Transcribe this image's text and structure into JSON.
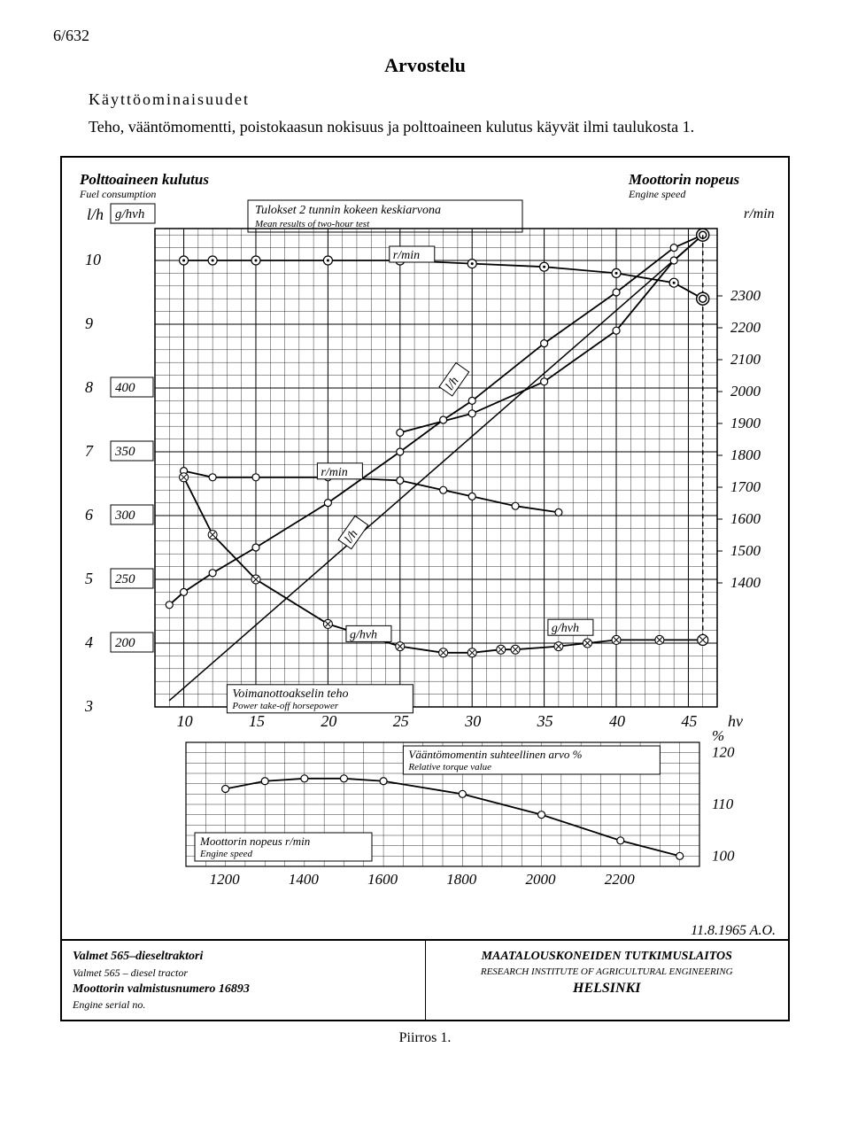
{
  "page_number": "6/632",
  "title": "Arvostelu",
  "subtitle": "Käyttöominaisuudet",
  "intro_text": "Teho, vääntömomentti, poistokaasun nokisuus ja polttoaineen kulutus käyvät ilmi taulukosta 1.",
  "caption": "Piirros 1.",
  "date": "11.8.1965 A.O.",
  "footer": {
    "left_line1": "Valmet 565–dieseltraktori",
    "left_line2": "Valmet 565 – diesel tractor",
    "left_line3": "Moottorin valmistusnumero   16893",
    "left_line4": "Engine serial no.",
    "right_line1": "MAATALOUSKONEIDEN TUTKIMUSLAITOS",
    "right_line2": "RESEARCH INSTITUTE OF AGRICULTURAL ENGINEERING",
    "right_line3": "HELSINKI"
  },
  "labels": {
    "fuel_consumption_fi": "Polttoaineen kulutus",
    "fuel_consumption_en": "Fuel consumption",
    "engine_speed_fi": "Moottorin nopeus",
    "engine_speed_en": "Engine speed",
    "lh": "l/h",
    "ghvh": "g/hvh",
    "rmin": "r/min",
    "mean_results_fi": "Tulokset 2 tunnin kokeen keskiarvona",
    "mean_results_en": "Mean results of two-hour test",
    "pto_fi": "Voimanottoakselin teho",
    "pto_en": "Power take-off horsepower",
    "torque_fi": "Vääntömomentin suhteellinen arvo %",
    "torque_en": "Relative torque value",
    "engine_speed_label_fi": "Moottorin nopeus r/min",
    "engine_speed_label_en": "Engine speed",
    "hv": "hv",
    "percent": "%"
  },
  "main_chart": {
    "type": "line",
    "x_axis": {
      "label": "hv",
      "ticks": [
        10,
        15,
        20,
        25,
        30,
        35,
        40,
        45
      ],
      "min": 8,
      "max": 47
    },
    "y_left_lh": {
      "ticks": [
        3,
        4,
        5,
        6,
        7,
        8,
        9,
        10
      ],
      "min": 3,
      "max": 10.5
    },
    "y_left_ghvh": {
      "ticks": [
        200,
        250,
        300,
        350,
        400
      ],
      "tick_positions_lh": [
        4,
        5,
        6,
        7,
        8
      ]
    },
    "y_right_rmin": {
      "ticks": [
        1400,
        1500,
        1600,
        1700,
        1800,
        1900,
        2000,
        2100,
        2200,
        2300
      ],
      "min": 1400,
      "max": 2400
    },
    "grid_color": "#000000",
    "background_color": "#ffffff",
    "line_color": "#000000",
    "line_width": 1.5,
    "marker_size": 4,
    "series_rmin_upper": {
      "label_box": "r/min",
      "marker": "circle-dot",
      "data": [
        [
          10,
          10.0
        ],
        [
          12,
          10.0
        ],
        [
          15,
          10.0
        ],
        [
          20,
          10.0
        ],
        [
          25,
          10.0
        ],
        [
          30,
          9.95
        ],
        [
          35,
          9.9
        ],
        [
          40,
          9.8
        ],
        [
          44,
          9.65
        ],
        [
          46,
          9.4
        ]
      ]
    },
    "series_lh_upper": {
      "label_box": "l/h",
      "marker": "circle",
      "data": [
        [
          25,
          7.3
        ],
        [
          30,
          7.6
        ],
        [
          35,
          8.1
        ],
        [
          40,
          8.9
        ],
        [
          44,
          10.0
        ],
        [
          46,
          10.4
        ]
      ]
    },
    "series_rmin_lower": {
      "label_box": "r/min",
      "marker": "circle",
      "data": [
        [
          10,
          6.7
        ],
        [
          12,
          6.6
        ],
        [
          15,
          6.6
        ],
        [
          20,
          6.6
        ],
        [
          25,
          6.55
        ],
        [
          28,
          6.4
        ],
        [
          30,
          6.3
        ],
        [
          33,
          6.15
        ],
        [
          36,
          6.05
        ]
      ]
    },
    "series_lh_lower": {
      "label_box": "l/h",
      "marker": "circle",
      "data": [
        [
          9,
          4.6
        ],
        [
          10,
          4.8
        ],
        [
          12,
          5.1
        ],
        [
          15,
          5.5
        ],
        [
          20,
          6.2
        ],
        [
          25,
          7.0
        ],
        [
          28,
          7.5
        ],
        [
          30,
          7.8
        ],
        [
          35,
          8.7
        ],
        [
          40,
          9.5
        ],
        [
          44,
          10.2
        ],
        [
          46,
          10.4
        ]
      ]
    },
    "series_ghvh": {
      "label_box": "g/hvh",
      "marker": "x-circle",
      "data": [
        [
          10,
          6.6
        ],
        [
          12,
          5.7
        ],
        [
          15,
          5.0
        ],
        [
          20,
          4.3
        ],
        [
          25,
          3.95
        ],
        [
          28,
          3.85
        ],
        [
          30,
          3.85
        ],
        [
          32,
          3.9
        ],
        [
          33,
          3.9
        ],
        [
          36,
          3.95
        ],
        [
          38,
          4.0
        ],
        [
          40,
          4.05
        ],
        [
          43,
          4.05
        ],
        [
          46,
          4.05
        ]
      ]
    },
    "series_ghvh_upper": {
      "label_box": "g/hvh",
      "data": [
        [
          35,
          4.05
        ],
        [
          40,
          4.05
        ],
        [
          44,
          4.05
        ],
        [
          46,
          4.05
        ]
      ]
    },
    "series_straight": {
      "data": [
        [
          9,
          3.1
        ],
        [
          46,
          10.4
        ]
      ]
    }
  },
  "torque_chart": {
    "type": "line",
    "x_axis": {
      "ticks": [
        1200,
        1400,
        1600,
        1800,
        2000,
        2200
      ],
      "min": 1100,
      "max": 2400
    },
    "y_axis": {
      "ticks": [
        100,
        110,
        120
      ],
      "min": 98,
      "max": 122
    },
    "series": {
      "marker": "circle",
      "data": [
        [
          1200,
          113
        ],
        [
          1300,
          114.5
        ],
        [
          1400,
          115
        ],
        [
          1500,
          115
        ],
        [
          1600,
          114.5
        ],
        [
          1800,
          112
        ],
        [
          2000,
          108
        ],
        [
          2200,
          103
        ],
        [
          2350,
          100
        ]
      ]
    }
  }
}
